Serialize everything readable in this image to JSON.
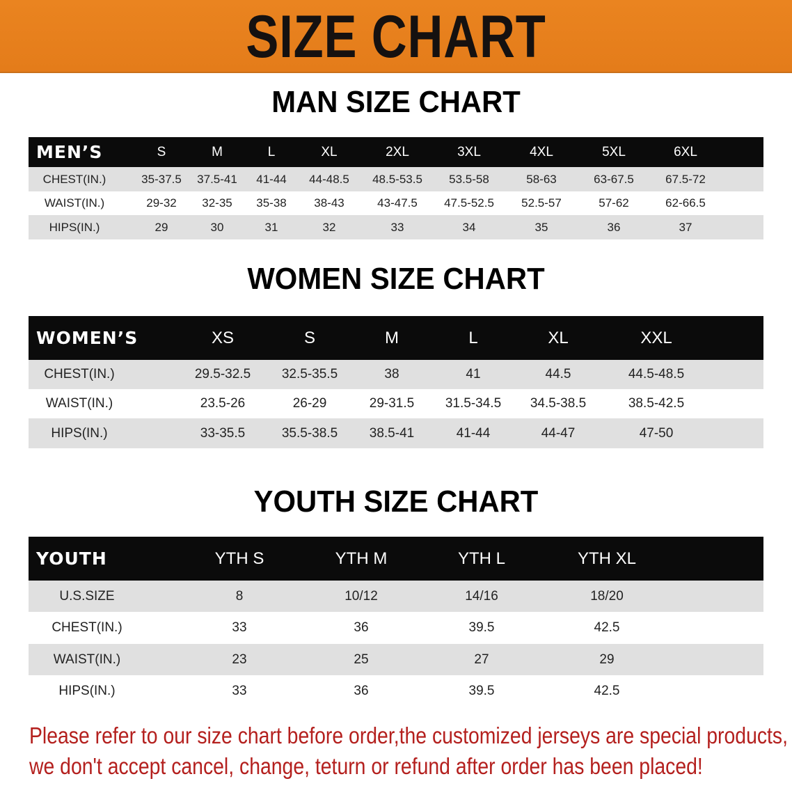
{
  "banner_title": "SIZE CHART",
  "colors": {
    "banner": "#e88220",
    "header_row": "#0b0b0b",
    "stripe": "#e0e0e0",
    "note": "#b4201e"
  },
  "men": {
    "title": "MAN SIZE CHART",
    "header_label": "MEN’S",
    "sizes": [
      "S",
      "M",
      "L",
      "XL",
      "2XL",
      "3XL",
      "4XL",
      "5XL",
      "6XL"
    ],
    "rows": [
      {
        "label": "CHEST(IN.)",
        "values": [
          "35-37.5",
          "37.5-41",
          "41-44",
          "44-48.5",
          "48.5-53.5",
          "53.5-58",
          "58-63",
          "63-67.5",
          "67.5-72"
        ]
      },
      {
        "label": "WAIST(IN.)",
        "values": [
          "29-32",
          "32-35",
          "35-38",
          "38-43",
          "43-47.5",
          "47.5-52.5",
          "52.5-57",
          "57-62",
          "62-66.5"
        ]
      },
      {
        "label": "HIPS(IN.)",
        "values": [
          "29",
          "30",
          "31",
          "32",
          "33",
          "34",
          "35",
          "36",
          "37"
        ]
      }
    ]
  },
  "women": {
    "title": "WOMEN SIZE CHART",
    "header_label": "WOMEN’S",
    "sizes": [
      "XS",
      "S",
      "M",
      "L",
      "XL",
      "XXL"
    ],
    "rows": [
      {
        "label": "CHEST(IN.)",
        "values": [
          "29.5-32.5",
          "32.5-35.5",
          "38",
          "41",
          "44.5",
          "44.5-48.5"
        ]
      },
      {
        "label": "WAIST(IN.)",
        "values": [
          "23.5-26",
          "26-29",
          "29-31.5",
          "31.5-34.5",
          "34.5-38.5",
          "38.5-42.5"
        ]
      },
      {
        "label": "HIPS(IN.)",
        "values": [
          "33-35.5",
          "35.5-38.5",
          "38.5-41",
          "41-44",
          "44-47",
          "47-50"
        ]
      }
    ]
  },
  "youth": {
    "title": "YOUTH SIZE CHART",
    "header_label": "YOUTH",
    "sizes": [
      "YTH S",
      "YTH M",
      "YTH L",
      "YTH XL"
    ],
    "rows": [
      {
        "label": "U.S.SIZE",
        "values": [
          "8",
          "10/12",
          "14/16",
          "18/20"
        ]
      },
      {
        "label": "CHEST(IN.)",
        "values": [
          "33",
          "36",
          "39.5",
          "42.5"
        ]
      },
      {
        "label": "WAIST(IN.)",
        "values": [
          "23",
          "25",
          "27",
          "29"
        ]
      },
      {
        "label": "HIPS(IN.)",
        "values": [
          "33",
          "36",
          "39.5",
          "42.5"
        ]
      }
    ]
  },
  "notice": {
    "line1": "Please refer to our size chart before order,the customized jerseys are special products,",
    "line2": "we don't accept cancel, change, teturn or refund after order has been placed!"
  }
}
